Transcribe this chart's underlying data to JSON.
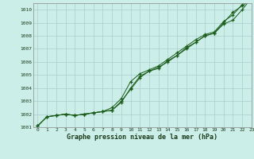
{
  "title": "Graphe pression niveau de la mer (hPa)",
  "bg_color": "#cceee8",
  "grid_color": "#aacccc",
  "line_color": "#1a5c1a",
  "xlim": [
    -0.5,
    23
  ],
  "ylim": [
    1001.0,
    1010.5
  ],
  "yticks": [
    1001,
    1002,
    1003,
    1004,
    1005,
    1006,
    1007,
    1008,
    1009,
    1010
  ],
  "xticks": [
    0,
    1,
    2,
    3,
    4,
    5,
    6,
    7,
    8,
    9,
    10,
    11,
    12,
    13,
    14,
    15,
    16,
    17,
    18,
    19,
    20,
    21,
    22,
    23
  ],
  "series1": [
    1001.1,
    1001.8,
    1001.9,
    1002.0,
    1001.9,
    1002.0,
    1002.1,
    1002.2,
    1002.3,
    1003.0,
    1003.9,
    1004.8,
    1005.3,
    1005.6,
    1006.0,
    1006.5,
    1007.1,
    1007.5,
    1008.0,
    1008.2,
    1009.0,
    1009.8,
    1010.3,
    1010.8
  ],
  "series2": [
    1001.1,
    1001.8,
    1001.9,
    1002.0,
    1001.9,
    1002.0,
    1002.1,
    1002.2,
    1002.3,
    1002.9,
    1004.0,
    1004.9,
    1005.3,
    1005.5,
    1006.1,
    1006.5,
    1007.0,
    1007.5,
    1008.0,
    1008.2,
    1008.9,
    1009.2,
    1010.0,
    1010.9
  ],
  "series3": [
    1001.1,
    1001.8,
    1001.9,
    1002.0,
    1001.9,
    1002.0,
    1002.1,
    1002.2,
    1002.5,
    1003.2,
    1004.5,
    1005.1,
    1005.4,
    1005.7,
    1006.2,
    1006.7,
    1007.2,
    1007.7,
    1008.1,
    1008.3,
    1009.1,
    1009.6,
    1010.4,
    1011.1
  ]
}
